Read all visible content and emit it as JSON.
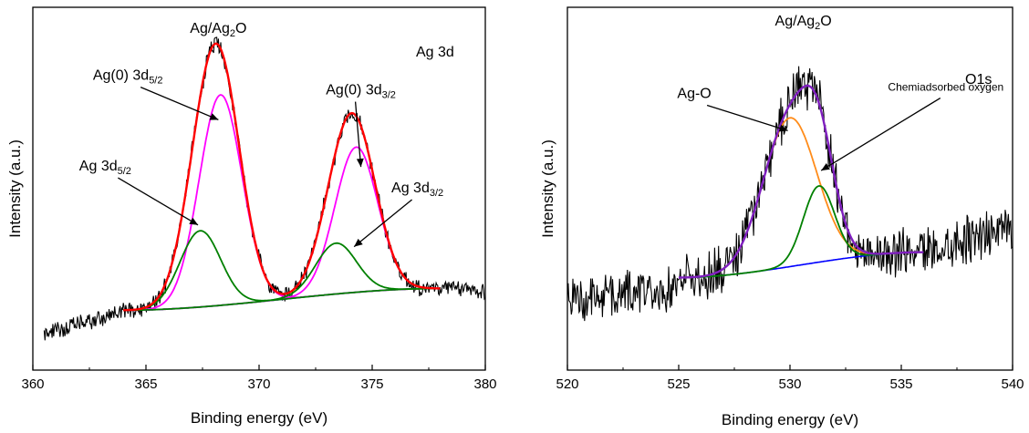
{
  "chart_data": [
    {
      "type": "line",
      "xlabel": "Binding energy (eV)",
      "ylabel": "Intensity (a.u.)",
      "xlim": [
        360,
        380
      ],
      "ylim": [
        0,
        1
      ],
      "xticks": [
        "360",
        "365",
        "370",
        "375",
        "380"
      ],
      "grid": false,
      "legend": "none",
      "tag": "Ag 3d",
      "annotations": [
        {
          "text": "Ag/Ag",
          "sub": "2",
          "post": "O",
          "x": 368.2,
          "y": 0.93,
          "arrow": false
        },
        {
          "text": "Ag(0) 3d",
          "sub": "5/2",
          "post": "",
          "x": 364.2,
          "y": 0.8,
          "arrow_to": [
            368.2,
            0.69
          ]
        },
        {
          "text": "Ag(0) 3d",
          "sub": "3/2",
          "post": "",
          "x": 374.5,
          "y": 0.76,
          "arrow_to": [
            374.5,
            0.56
          ]
        },
        {
          "text": "Ag 3d",
          "sub": "5/2",
          "post": "",
          "x": 363.2,
          "y": 0.55,
          "arrow_to": [
            367.3,
            0.4
          ]
        },
        {
          "text": "Ag 3d",
          "sub": "3/2",
          "post": "",
          "x": 377.0,
          "y": 0.49,
          "arrow_to": [
            374.2,
            0.34
          ]
        }
      ],
      "baseline": {
        "start": [
          364,
          0.165
        ],
        "end": [
          378,
          0.225
        ]
      },
      "peaks": [
        {
          "name": "Ag(0) 3d5/2",
          "color": "#ff00ff",
          "center": 368.3,
          "height": 0.58,
          "sigma": 0.95
        },
        {
          "name": "Ag(0) 3d3/2",
          "color": "#ff00ff",
          "center": 374.3,
          "height": 0.4,
          "sigma": 0.95
        },
        {
          "name": "Ag 3d5/2",
          "color": "#008000",
          "center": 367.4,
          "height": 0.21,
          "sigma": 0.9
        },
        {
          "name": "Ag 3d3/2",
          "color": "#008000",
          "center": 373.4,
          "height": 0.14,
          "sigma": 0.9
        }
      ],
      "fit": {
        "color": "#ff0000",
        "range": [
          364,
          378
        ]
      },
      "background_color": "#0000ff",
      "raw_color": "#000000",
      "raw_noise": 0.02,
      "raw_pre_edge": {
        "start": [
          360.5,
          0.1
        ],
        "end": [
          364,
          0.16
        ]
      },
      "raw_post_edge": {
        "start": [
          378,
          0.225
        ],
        "end": [
          380,
          0.22
        ]
      }
    },
    {
      "type": "line",
      "xlabel": "Binding energy (eV)",
      "ylabel": "Intensity (a.u.)",
      "xlim": [
        520,
        540
      ],
      "ylim": [
        0,
        1
      ],
      "xticks": [
        "520",
        "525",
        "530",
        "535",
        "540"
      ],
      "grid": false,
      "legend": "none",
      "tag": "O1s",
      "annotations": [
        {
          "text": "Ag/Ag",
          "sub": "2",
          "post": "O",
          "x": 530.6,
          "y": 0.95,
          "arrow": false
        },
        {
          "text": "Ag-O",
          "sub": "",
          "post": "",
          "x": 525.7,
          "y": 0.75,
          "arrow_to": [
            529.9,
            0.66
          ]
        },
        {
          "text": "Chemiadsorbed oxygen",
          "sub": "",
          "post": "",
          "x": 537.0,
          "y": 0.77,
          "small": true,
          "arrow_to": [
            531.4,
            0.55
          ]
        }
      ],
      "baseline": {
        "start": [
          525,
          0.255
        ],
        "end": [
          536,
          0.325
        ]
      },
      "peaks": [
        {
          "name": "Ag-O",
          "color": "#ff8c1a",
          "center": 530.0,
          "height": 0.41,
          "sigma": 1.2
        },
        {
          "name": "Chemiadsorbed oxygen",
          "color": "#008000",
          "center": 531.3,
          "height": 0.21,
          "sigma": 0.7
        }
      ],
      "fit": {
        "color": "#7f1fbf",
        "range": [
          525,
          536
        ]
      },
      "background_color": "#0000ff",
      "raw_color": "#000000",
      "raw_noise": 0.055,
      "raw_pre_edge": {
        "start": [
          520,
          0.19
        ],
        "end": [
          525,
          0.23
        ]
      },
      "raw_post_edge": {
        "start": [
          536,
          0.325
        ],
        "end": [
          540,
          0.4
        ]
      }
    }
  ]
}
